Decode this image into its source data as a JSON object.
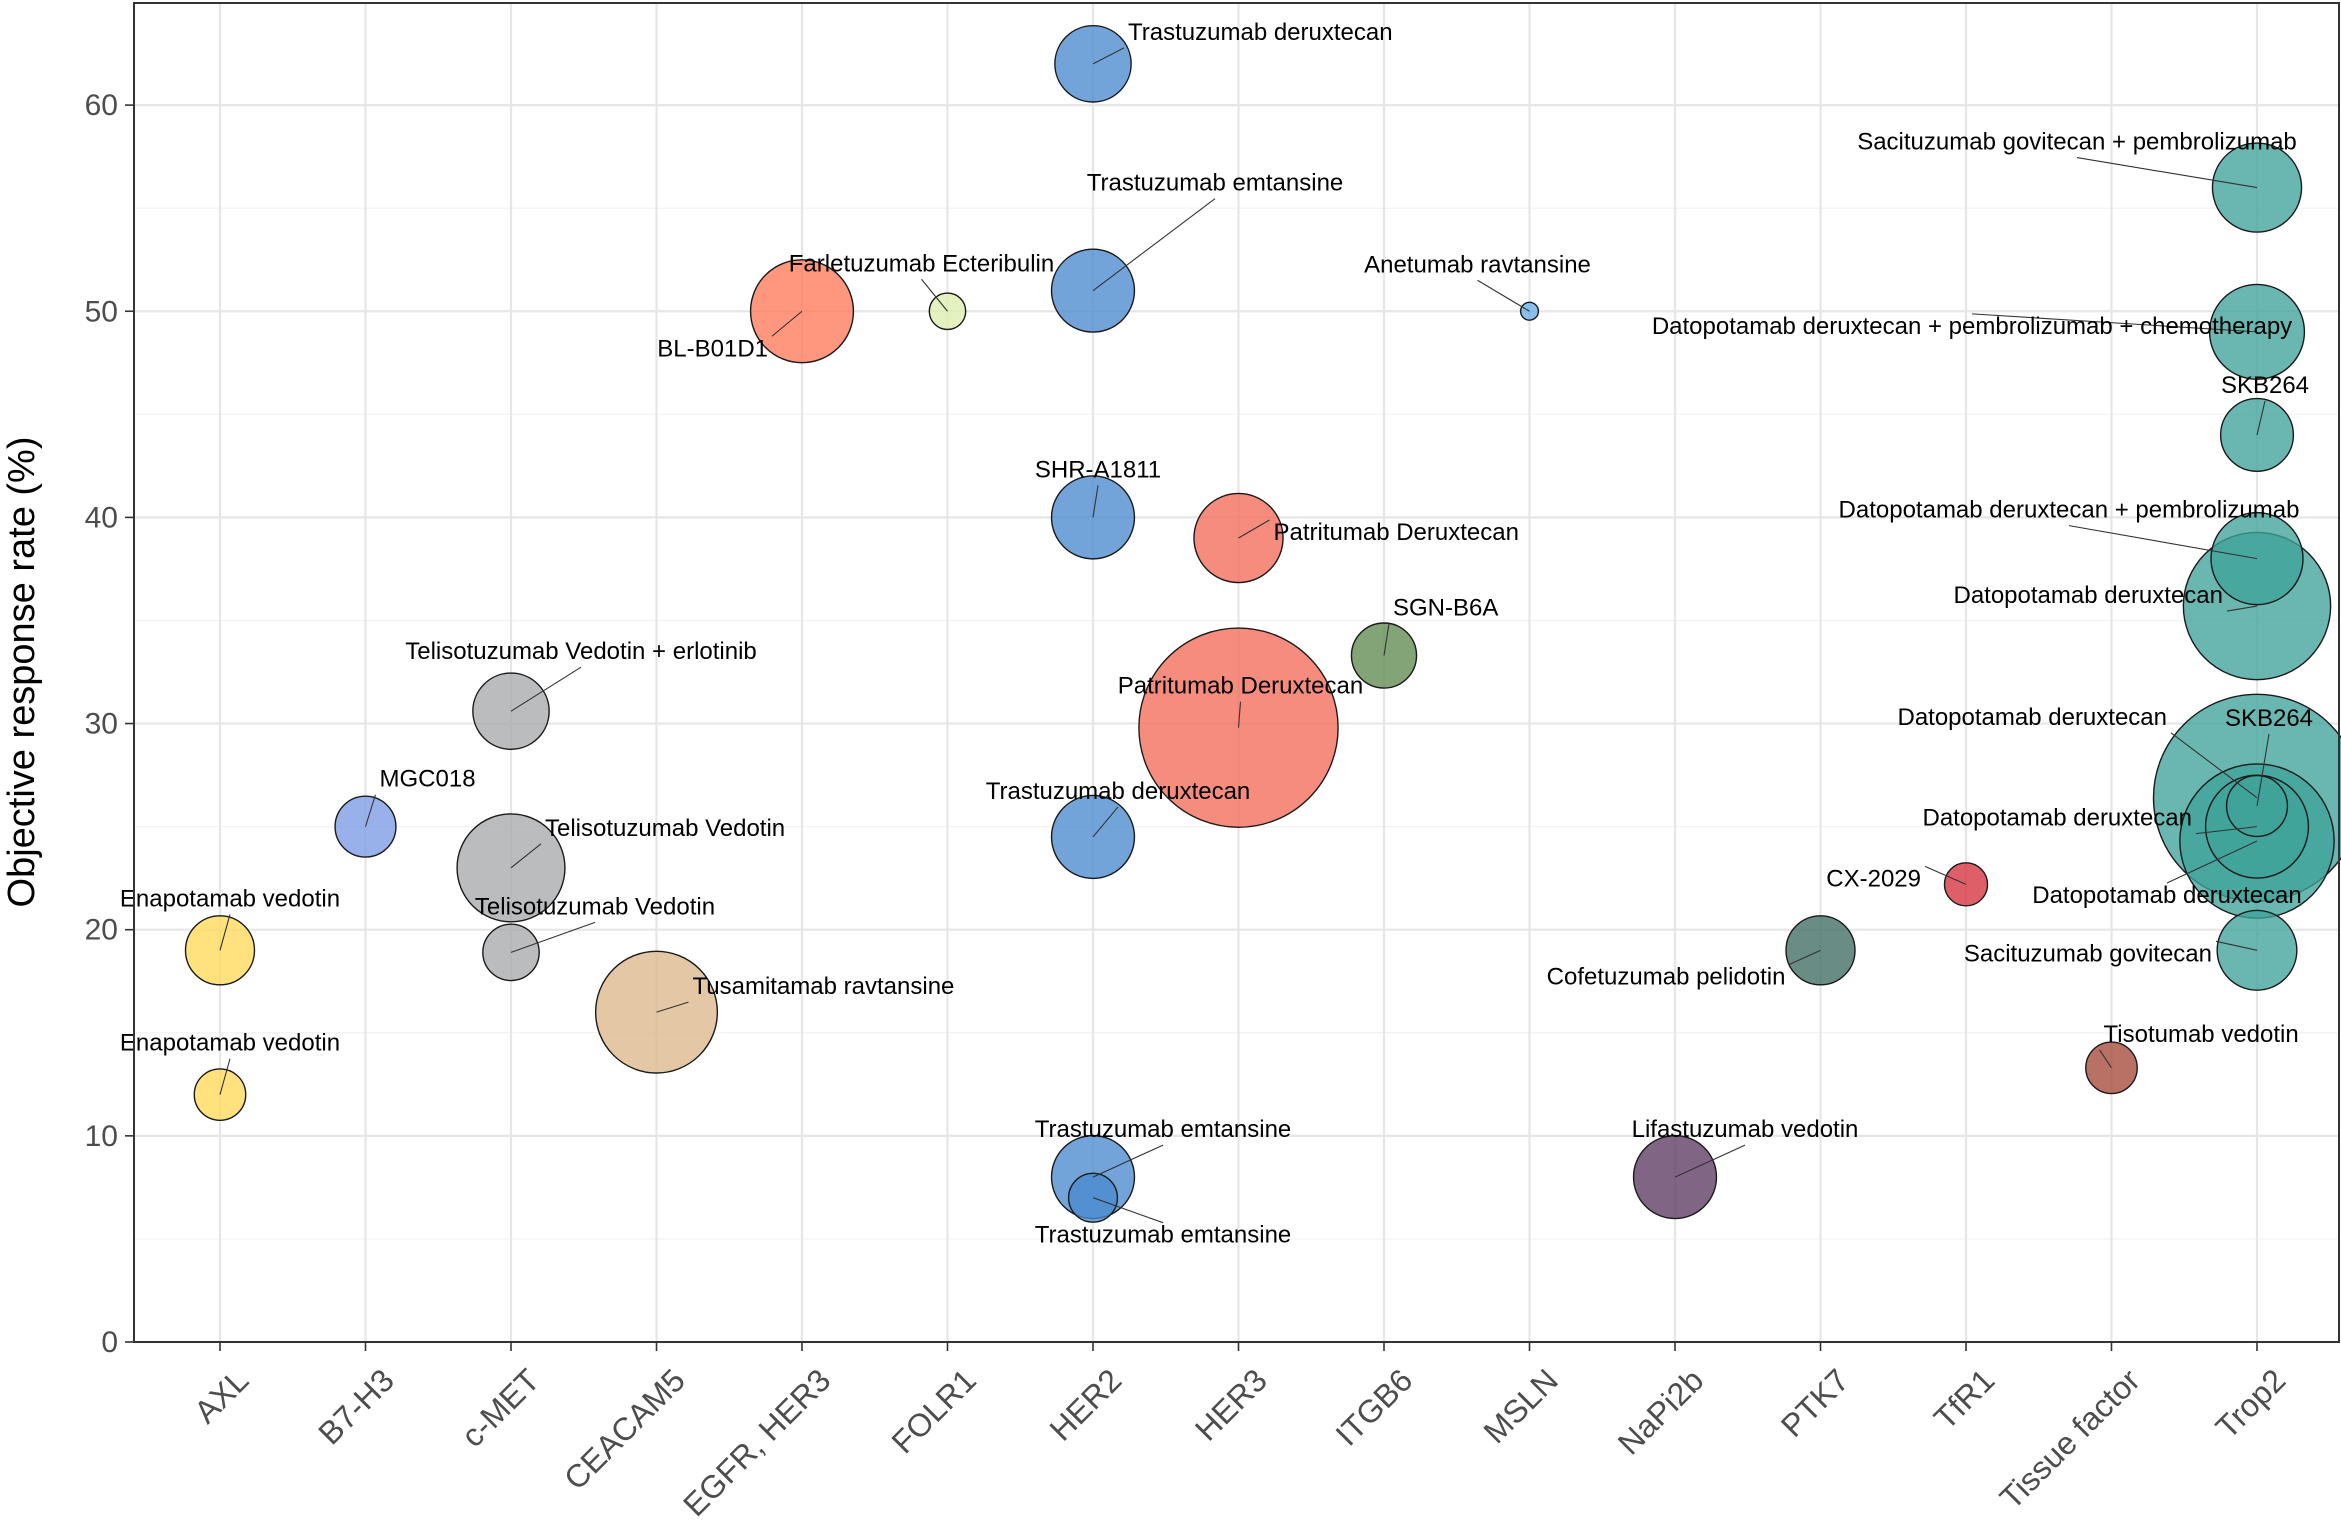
{
  "chart_data": {
    "type": "scatter",
    "subtype": "bubble",
    "ylabel": "Objective response rate (%)",
    "xlabel": "",
    "ylim": [
      0,
      65
    ],
    "yticks": [
      0,
      10,
      20,
      30,
      40,
      50,
      60
    ],
    "grid": true,
    "legend": "none",
    "categories": [
      "AXL",
      "B7-H3",
      "c-MET",
      "CEACAM5",
      "EGFR, HER3",
      "FOLR1",
      "HER2",
      "HER3",
      "ITGB6",
      "MSLN",
      "NaPi2b",
      "PTK7",
      "TfR1",
      "Tissue factor",
      "Trop2"
    ],
    "category_colors": {
      "AXL": "#FFD95A",
      "B7-H3": "#7B9BE6",
      "c-MET": "#A6A9AC",
      "CEACAM5": "#DDB98C",
      "EGFR, HER3": "#FF7A5A",
      "FOLR1": "#DDEEB0",
      "HER2": "#4A8BD0",
      "HER3": "#F36B5A",
      "ITGB6": "#5F8A4F",
      "MSLN": "#6AAEE8",
      "NaPi2b": "#5E3A63",
      "PTK7": "#3F6B62",
      "TfR1": "#D6323F",
      "Tissue factor": "#A5493A",
      "Trop2": "#3FA39A"
    },
    "points": [
      {
        "category": "AXL",
        "label": "Enapotamab vedotin",
        "value": 19,
        "size": 9
      },
      {
        "category": "AXL",
        "label": "Enapotamab vedotin",
        "value": 12,
        "size": 5
      },
      {
        "category": "B7-H3",
        "label": "MGC018",
        "value": 25,
        "size": 7
      },
      {
        "category": "c-MET",
        "label": "Telisotuzumab Vedotin + erlotinib",
        "value": 30.6,
        "size": 11
      },
      {
        "category": "c-MET",
        "label": "Telisotuzumab Vedotin",
        "value": 23,
        "size": 22
      },
      {
        "category": "c-MET",
        "label": "Telisotuzumab Vedotin",
        "value": 18.9,
        "size": 6
      },
      {
        "category": "CEACAM5",
        "label": "Tusamitamab ravtansine",
        "value": 16,
        "size": 28
      },
      {
        "category": "EGFR, HER3",
        "label": "BL-B01D1",
        "value": 50,
        "size": 20
      },
      {
        "category": "FOLR1",
        "label": "Farletuzumab Ecteribulin",
        "value": 50,
        "size": 2.5
      },
      {
        "category": "HER2",
        "label": "Trastuzumab deruxtecan",
        "value": 62,
        "size": 11
      },
      {
        "category": "HER2",
        "label": "Trastuzumab emtansine",
        "value": 51,
        "size": 13
      },
      {
        "category": "HER2",
        "label": "SHR-A1811",
        "value": 40,
        "size": 13
      },
      {
        "category": "HER2",
        "label": "Trastuzumab deruxtecan",
        "value": 24.5,
        "size": 13
      },
      {
        "category": "HER2",
        "label": "Trastuzumab emtansine",
        "value": 8,
        "size": 13
      },
      {
        "category": "HER2",
        "label": "Trastuzumab emtansine",
        "value": 7,
        "size": 4.5
      },
      {
        "category": "HER3",
        "label": "Patritumab Deruxtecan",
        "value": 39,
        "size": 15
      },
      {
        "category": "HER3",
        "label": "Patritumab Deruxtecan",
        "value": 29.8,
        "size": 75
      },
      {
        "category": "ITGB6",
        "label": "SGN-B6A",
        "value": 33.3,
        "size": 8
      },
      {
        "category": "MSLN",
        "label": "Anetumab ravtansine",
        "value": 50,
        "size": 0.6
      },
      {
        "category": "NaPi2b",
        "label": "Lifastuzumab vedotin",
        "value": 8,
        "size": 13
      },
      {
        "category": "PTK7",
        "label": "Cofetuzumab pelidotin",
        "value": 19,
        "size": 9
      },
      {
        "category": "TfR1",
        "label": "CX-2029",
        "value": 22.2,
        "size": 3.5
      },
      {
        "category": "Tissue factor",
        "label": "Tisotumab vedotin",
        "value": 13.3,
        "size": 5
      },
      {
        "category": "Trop2",
        "label": "Sacituzumab govitecan + pembrolizumab",
        "value": 56,
        "size": 15
      },
      {
        "category": "Trop2",
        "label": "Datopotamab deruxtecan + pembrolizumab + chemotherapy",
        "value": 49,
        "size": 17
      },
      {
        "category": "Trop2",
        "label": "SKB264",
        "value": 44,
        "size": 10
      },
      {
        "category": "Trop2",
        "label": "Datopotamab deruxtecan + pembrolizumab",
        "value": 38,
        "size": 16
      },
      {
        "category": "Trop2",
        "label": "Datopotamab deruxtecan",
        "value": 35.7,
        "size": 41
      },
      {
        "category": "Trop2",
        "label": "Datopotamab deruxtecan",
        "value": 26.4,
        "size": 81
      },
      {
        "category": "Trop2",
        "label": "SKB264",
        "value": 26,
        "size": 7
      },
      {
        "category": "Trop2",
        "label": "Datopotamab deruxtecan",
        "value": 25,
        "size": 20
      },
      {
        "category": "Trop2",
        "label": "Datopotamab deruxtecan",
        "value": 24.3,
        "size": 45
      },
      {
        "category": "Trop2",
        "label": "Sacituzumab govitecan",
        "value": 19,
        "size": 12
      }
    ]
  }
}
